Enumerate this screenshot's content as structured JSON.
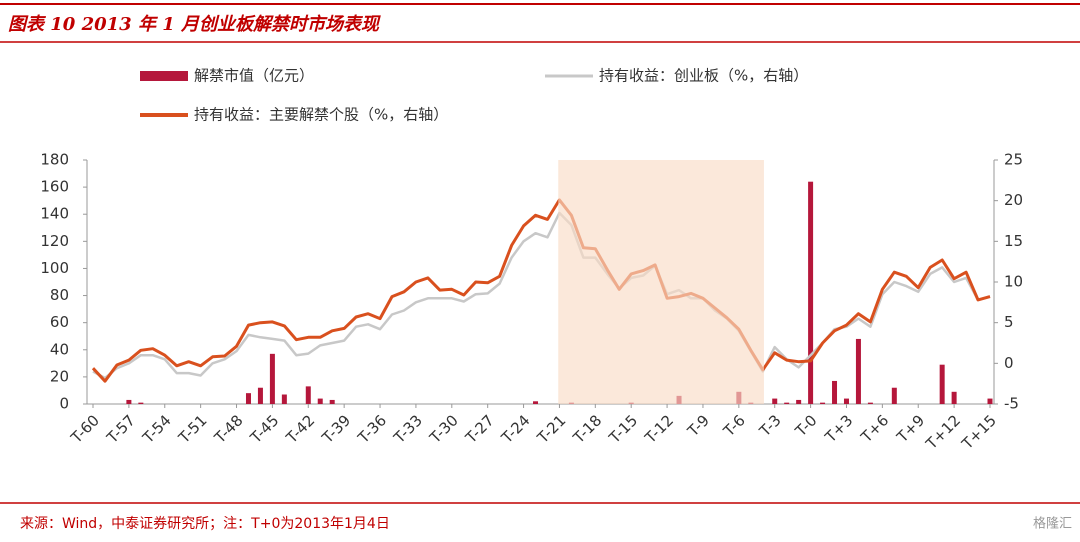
{
  "chart_data": {
    "type": "combo",
    "title": "图表 10 2013 年 1 月创业板解禁时市场表现",
    "source": "来源：Wind，中泰证券研究所；注：T+0为2013年1月4日",
    "watermark": "格隆汇",
    "categories": [
      "T-60",
      null,
      null,
      "T-57",
      null,
      null,
      "T-54",
      null,
      null,
      "T-51",
      null,
      null,
      "T-48",
      null,
      null,
      "T-45",
      null,
      null,
      "T-42",
      null,
      null,
      "T-39",
      null,
      null,
      "T-36",
      null,
      null,
      "T-33",
      null,
      null,
      "T-30",
      null,
      null,
      "T-27",
      null,
      null,
      "T-24",
      null,
      null,
      "T-21",
      null,
      null,
      "T-18",
      null,
      null,
      "T-15",
      null,
      null,
      "T-12",
      null,
      null,
      "T-9",
      null,
      null,
      "T-6",
      null,
      null,
      "T-3",
      null,
      null,
      "T-0",
      null,
      null,
      "T+3",
      null,
      null,
      "T+6",
      null,
      null,
      "T+9",
      null,
      null,
      "T+12",
      null,
      null,
      "T+15"
    ],
    "ylim": [
      0,
      180
    ],
    "yticks": [
      0,
      20,
      40,
      60,
      80,
      100,
      120,
      140,
      160,
      180
    ],
    "y2lim": [
      -5,
      25
    ],
    "y2ticks": [
      -5,
      0,
      5,
      10,
      15,
      20,
      25
    ],
    "legend": "top-left",
    "series": [
      {
        "name": "解禁市值（亿元）",
        "type": "bar",
        "color": "#b5173b",
        "values": [
          0,
          0,
          0,
          3,
          1,
          0,
          0,
          0,
          0,
          0,
          0,
          0,
          0,
          8,
          12,
          37,
          7,
          0,
          13,
          4,
          3,
          0,
          0,
          0,
          0,
          0,
          0,
          0,
          0,
          0,
          0,
          0,
          0,
          0,
          0,
          0,
          0,
          2,
          0,
          0,
          1,
          0,
          0,
          0,
          0,
          1,
          0,
          0,
          0,
          6,
          0,
          0,
          0,
          0,
          9,
          1,
          0,
          4,
          1,
          3,
          164,
          1,
          17,
          4,
          48,
          1,
          0,
          12,
          0,
          0,
          0,
          29,
          9,
          0,
          0,
          4
        ]
      },
      {
        "name": "持有收益：创业板（%，右轴）",
        "type": "line",
        "axis": "y2",
        "color": "#c8c8c8",
        "values": [
          -1.0,
          -1.8,
          -0.6,
          0.0,
          1.0,
          1.0,
          0.5,
          -1.2,
          -1.2,
          -1.5,
          0.0,
          0.5,
          1.5,
          3.5,
          3.2,
          3.0,
          2.8,
          1.0,
          1.2,
          2.2,
          2.5,
          2.8,
          4.5,
          4.8,
          4.2,
          6.0,
          6.5,
          7.5,
          8.0,
          8.0,
          8.0,
          7.6,
          8.5,
          8.6,
          9.8,
          13.0,
          15.0,
          16.0,
          15.5,
          18.5,
          17.0,
          13.0,
          13.0,
          11.0,
          9.2,
          10.5,
          10.8,
          12.0,
          8.5,
          9.0,
          8.0,
          8.0,
          6.5,
          5.5,
          4.0,
          1.5,
          -1.0,
          2.0,
          0.5,
          -0.5,
          1.0,
          2.5,
          4.2,
          4.5,
          5.5,
          4.5,
          8.5,
          10.0,
          9.5,
          8.8,
          11.0,
          11.8,
          10.0,
          10.5,
          7.8,
          8.2
        ]
      },
      {
        "name": "持有收益：主要解禁个股（%，右轴）",
        "type": "line",
        "axis": "y2",
        "color": "#d9501e",
        "values": [
          -0.6,
          -2.2,
          -0.2,
          0.4,
          1.6,
          1.8,
          1.0,
          -0.3,
          0.2,
          -0.3,
          0.8,
          0.9,
          2.1,
          4.7,
          5.0,
          5.1,
          4.6,
          2.9,
          3.2,
          3.2,
          4.0,
          4.3,
          5.7,
          6.1,
          5.5,
          8.2,
          8.8,
          10.0,
          10.5,
          9.0,
          9.1,
          8.4,
          10.0,
          9.9,
          10.7,
          14.5,
          16.9,
          18.2,
          17.7,
          20.1,
          18.2,
          14.2,
          14.1,
          11.5,
          9.1,
          11.0,
          11.4,
          12.1,
          8.0,
          8.2,
          8.6,
          8.0,
          6.8,
          5.6,
          4.2,
          1.6,
          -0.8,
          1.3,
          0.4,
          0.2,
          0.3,
          2.5,
          4.0,
          4.7,
          6.1,
          5.1,
          9.1,
          11.2,
          10.7,
          9.3,
          11.8,
          12.7,
          10.4,
          11.2,
          7.8,
          8.2
        ]
      }
    ]
  }
}
